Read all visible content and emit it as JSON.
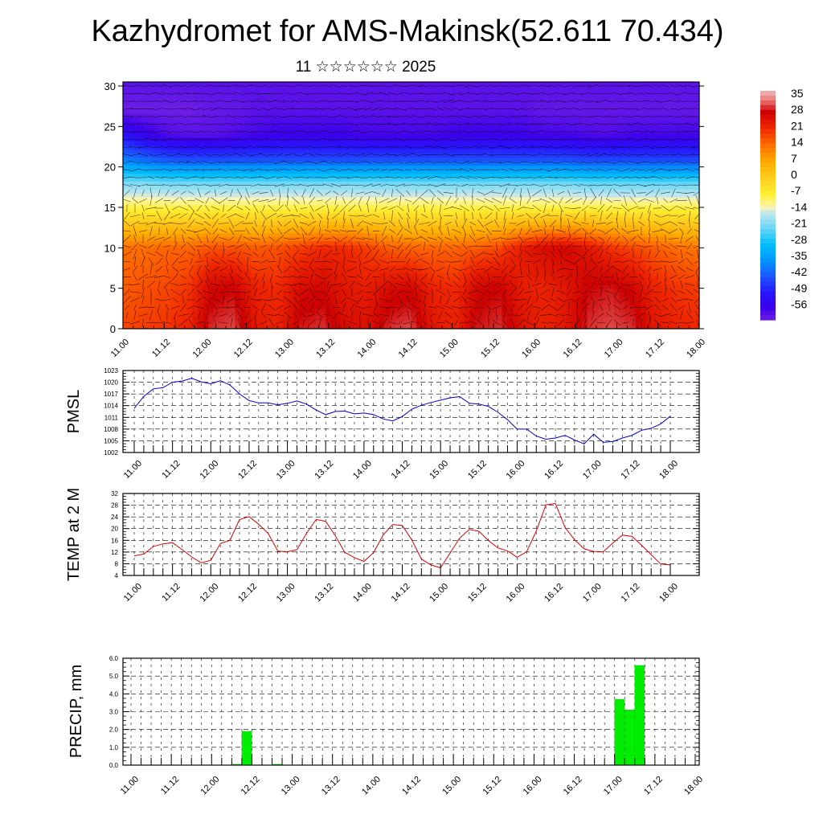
{
  "title": "Kazhydromet for AMS-Makinsk(52.611 70.434)",
  "subtitle": "11 ☆☆☆☆☆☆ 2025",
  "colors": {
    "pmsl_line": "#0000cc",
    "temp_line": "#dd0000",
    "precip_bar": "#00ee00",
    "vector": "#000000"
  },
  "chart_data": [
    {
      "type": "heatmap",
      "name": "cross-section",
      "x_ticks": [
        "11.00",
        "11.12",
        "12.00",
        "12.12",
        "13.00",
        "13.12",
        "14.00",
        "14.12",
        "15.00",
        "15.12",
        "16.00",
        "16.12",
        "17.00",
        "17.12",
        "18.00"
      ],
      "y_ticks": [
        0,
        5,
        10,
        15,
        20,
        25,
        30
      ],
      "ylim": [
        0,
        30.5
      ],
      "colorbar": {
        "labels": [
          "35",
          "28",
          "21",
          "14",
          "7",
          "0",
          "-7",
          "-14",
          "-21",
          "-28",
          "-35",
          "-42",
          "-49",
          "-56"
        ],
        "range": [
          -60,
          37
        ]
      },
      "vectors": "wind-barbs",
      "temperature_field": [
        {
          "level": 0,
          "values": [
            18,
            19,
            20,
            22,
            30,
            31,
            24,
            22,
            29,
            30,
            26,
            25,
            30,
            31,
            24,
            22,
            29,
            30,
            25,
            22,
            24,
            30,
            31,
            30,
            24,
            22,
            21
          ]
        },
        {
          "level": 5,
          "values": [
            16,
            17,
            18,
            20,
            27,
            28,
            22,
            21,
            26,
            27,
            24,
            23,
            26,
            27,
            22,
            21,
            27,
            28,
            23,
            22,
            24,
            28,
            29,
            27,
            22,
            20,
            19
          ]
        },
        {
          "level": 10,
          "values": [
            14,
            14,
            15,
            15,
            17,
            17,
            16,
            17,
            19,
            21,
            21,
            19,
            16,
            15,
            15,
            15,
            16,
            18,
            23,
            26,
            27,
            24,
            20,
            18,
            16,
            14,
            13
          ]
        },
        {
          "level": 15,
          "values": [
            -8,
            -8,
            -8,
            -8,
            -8,
            -8,
            -8,
            -8,
            -8,
            -8,
            -8,
            -8,
            -8,
            -8,
            -8,
            -8,
            -8,
            -8,
            -8,
            -8,
            -8,
            -8,
            -8,
            -8,
            -8,
            -8,
            -8
          ]
        },
        {
          "level": 18,
          "values": [
            -20,
            -20,
            -21,
            -21,
            -21,
            -21,
            -21,
            -21,
            -21,
            -21,
            -21,
            -21,
            -21,
            -21,
            -21,
            -21,
            -21,
            -21,
            -21,
            -21,
            -21,
            -22,
            -22,
            -22,
            -22,
            -22,
            -22
          ]
        },
        {
          "level": 21,
          "values": [
            -38,
            -40,
            -42,
            -43,
            -43,
            -43,
            -43,
            -43,
            -43,
            -43,
            -43,
            -43,
            -43,
            -43,
            -43,
            -43,
            -43,
            -43,
            -43,
            -43,
            -43,
            -44,
            -44,
            -44,
            -44,
            -44,
            -44
          ]
        },
        {
          "level": 24,
          "values": [
            -50,
            -54,
            -57,
            -58,
            -58,
            -57,
            -56,
            -55,
            -55,
            -55,
            -55,
            -56,
            -56,
            -56,
            -56,
            -55,
            -55,
            -55,
            -55,
            -56,
            -56,
            -57,
            -57,
            -56,
            -56,
            -56,
            -56
          ]
        },
        {
          "level": 27,
          "values": [
            -60,
            -60,
            -60,
            -60,
            -59,
            -59,
            -58,
            -58,
            -58,
            -58,
            -58,
            -58,
            -58,
            -58,
            -58,
            -58,
            -58,
            -58,
            -58,
            -59,
            -59,
            -59,
            -59,
            -59,
            -59,
            -59,
            -59
          ]
        },
        {
          "level": 30.5,
          "values": [
            -58,
            -58,
            -58,
            -58,
            -58,
            -58,
            -58,
            -58,
            -58,
            -58,
            -58,
            -58,
            -58,
            -58,
            -58,
            -58,
            -58,
            -58,
            -58,
            -58,
            -58,
            -58,
            -58,
            -58,
            -58,
            -58,
            -58
          ]
        }
      ]
    },
    {
      "type": "line",
      "name": "pmsl",
      "ylabel": "PMSL",
      "x_ticks": [
        "11.00",
        "11.12",
        "12.00",
        "12.12",
        "13.00",
        "13.12",
        "14.00",
        "14.12",
        "15.00",
        "15.12",
        "16.00",
        "16.12",
        "17.00",
        "17.12",
        "18.00"
      ],
      "y_ticks": [
        "1002",
        "1005",
        "1008",
        "1011",
        "1014",
        "1017",
        "1020",
        "1023"
      ],
      "ylim": [
        1002,
        1023
      ],
      "step_hours": 3,
      "values": [
        1013.3,
        1016.4,
        1018.3,
        1018.6,
        1020,
        1020.3,
        1021,
        1020.1,
        1019.6,
        1020.4,
        1019.3,
        1017,
        1015.3,
        1014.7,
        1014.7,
        1014.2,
        1014.6,
        1015.2,
        1014.4,
        1012.9,
        1011.7,
        1012.5,
        1012.6,
        1011.9,
        1012.1,
        1011.7,
        1010.6,
        1010.1,
        1011.2,
        1013.1,
        1014.1,
        1014.8,
        1015.4,
        1016,
        1016.3,
        1014.6,
        1014.4,
        1013.8,
        1012.3,
        1010.4,
        1008,
        1008,
        1006.2,
        1005.4,
        1005.7,
        1006.4,
        1005.2,
        1004.2,
        1006.7,
        1004.6,
        1004.8,
        1005.7,
        1006.4,
        1007.7,
        1008.2,
        1009.3,
        1011.3
      ]
    },
    {
      "type": "line",
      "name": "temp2m",
      "ylabel": "TEMP at 2 M",
      "x_ticks": [
        "11.00",
        "11.12",
        "12.00",
        "12.12",
        "13.00",
        "13.12",
        "14.00",
        "14.12",
        "15.00",
        "15.12",
        "16.00",
        "16.12",
        "17.00",
        "17.12",
        "18.00"
      ],
      "y_ticks": [
        "4",
        "8",
        "12",
        "16",
        "20",
        "24",
        "28",
        "32"
      ],
      "ylim": [
        4,
        32
      ],
      "step_hours": 3,
      "values": [
        10.7,
        11.3,
        13.9,
        14.8,
        15.2,
        12.8,
        10.3,
        8.3,
        9.2,
        14.9,
        16,
        23.1,
        24.1,
        21.5,
        18.3,
        12.3,
        12.1,
        12.8,
        18.4,
        23.1,
        22.5,
        17.6,
        11.9,
        10.1,
        8.8,
        11.8,
        17.8,
        21.4,
        21.1,
        16.1,
        9.6,
        7.6,
        6.6,
        11.7,
        16.8,
        19.7,
        19.1,
        15.9,
        13.4,
        12.4,
        10.2,
        12.1,
        19.2,
        28.1,
        28.6,
        20.4,
        16.2,
        13.1,
        12.2,
        12.1,
        15.1,
        17.8,
        17.3,
        14.3,
        11.1,
        7.9,
        7.6
      ]
    },
    {
      "type": "bar",
      "name": "precip",
      "ylabel": "PRECIP, mm",
      "x_ticks": [
        "11.00",
        "11.12",
        "12.00",
        "12.12",
        "13.00",
        "13.12",
        "14.00",
        "14.12",
        "15.00",
        "15.12",
        "16.00",
        "16.12",
        "17.00",
        "17.12",
        "18.00"
      ],
      "y_ticks": [
        "0.0",
        "1.0",
        "2.0",
        "3.0",
        "4.0",
        "5.0",
        "6.0"
      ],
      "ylim": [
        0,
        6
      ],
      "step_hours": 3,
      "values": [
        0,
        0,
        0,
        0,
        0,
        0,
        0,
        0,
        0,
        0,
        0.05,
        1.9,
        0,
        0,
        0.05,
        0,
        0,
        0,
        0,
        0,
        0,
        0,
        0,
        0,
        0,
        0,
        0,
        0,
        0,
        0,
        0,
        0,
        0,
        0,
        0,
        0,
        0,
        0,
        0,
        0,
        0,
        0,
        0,
        0,
        0,
        0,
        0,
        0,
        3.7,
        3.1,
        5.6,
        0,
        0,
        0,
        0,
        0
      ]
    }
  ]
}
